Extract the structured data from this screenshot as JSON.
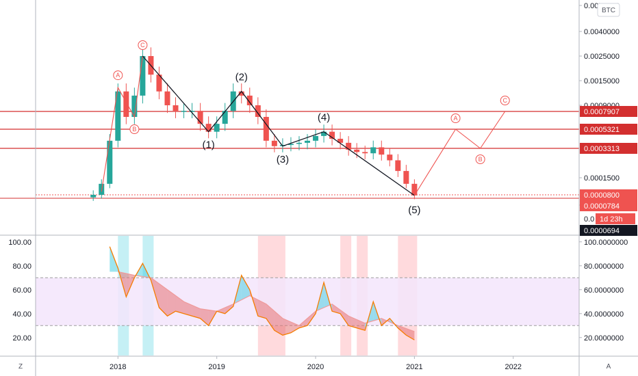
{
  "chart_data": {
    "type": "line",
    "symbol": "BTC",
    "main_pane": {
      "y_ticks": [
        "0.0070000",
        "0.0040000",
        "0.0025000",
        "0.0015000",
        "0.0009000",
        "0.0001500",
        "0.0000500"
      ],
      "y_tick_values": [
        0.007,
        0.004,
        0.0025,
        0.0015,
        0.0009,
        0.00015,
        5e-05
      ],
      "horizontal_levels": [
        {
          "label": "0.0007907",
          "value": 0.0007907
        },
        {
          "label": "0.0005321",
          "value": 0.0005321
        },
        {
          "label": "0.0003313",
          "value": 0.0003313
        }
      ],
      "price_tags": [
        {
          "label": "0.0000800",
          "value": 8e-05
        },
        {
          "label": "0.0000784",
          "value": 7.84e-05
        },
        {
          "label": "0.0000694",
          "value": 6.94e-05
        }
      ],
      "countdown": "1d 23h",
      "partial_tick": "0.0",
      "price_series": {
        "dates": [
          "2017-10",
          "2017-11",
          "2017-12",
          "2018-01",
          "2018-02",
          "2018-03",
          "2018-04",
          "2018-05",
          "2018-06",
          "2018-07",
          "2018-08",
          "2018-09",
          "2018-10",
          "2018-11",
          "2018-12",
          "2019-01",
          "2019-02",
          "2019-03",
          "2019-04",
          "2019-05",
          "2019-06",
          "2019-07",
          "2019-08",
          "2019-09",
          "2019-10",
          "2019-11",
          "2019-12",
          "2020-01",
          "2020-02",
          "2020-03",
          "2020-04",
          "2020-05",
          "2020-06",
          "2020-07",
          "2020-08",
          "2020-09",
          "2020-10",
          "2020-11",
          "2020-12",
          "2021-01"
        ],
        "close": [
          8e-05,
          0.00012,
          0.0004,
          0.0012,
          0.0007,
          0.0011,
          0.0025,
          0.0017,
          0.0012,
          0.0009,
          0.0008,
          0.0008,
          0.0008,
          0.0006,
          0.0005,
          0.0006,
          0.0008,
          0.0012,
          0.0011,
          0.0009,
          0.0007,
          0.0004,
          0.00035,
          0.00036,
          0.00037,
          0.00038,
          0.0004,
          0.00045,
          0.0005,
          0.00042,
          0.00038,
          0.00032,
          0.0003,
          0.00029,
          0.00034,
          0.00028,
          0.00024,
          0.00018,
          0.00012,
          7.8e-05
        ]
      },
      "elliott_wave_labels": [
        "(1)",
        "(2)",
        "(3)",
        "(4)",
        "(5)"
      ],
      "elliott_wave_points": [
        {
          "label": "(1)",
          "date": "2018-12",
          "value": 0.0005
        },
        {
          "label": "(2)",
          "date": "2019-04",
          "value": 0.0012
        },
        {
          "label": "(3)",
          "date": "2019-09",
          "value": 0.00035
        },
        {
          "label": "(4)",
          "date": "2020-02",
          "value": 0.0005
        },
        {
          "label": "(5)",
          "date": "2021-01",
          "value": 7.8e-05
        }
      ],
      "abc_labels": [
        "A",
        "B",
        "C",
        "A",
        "B",
        "C"
      ],
      "abc_past": [
        {
          "label": "A",
          "date": "2018-01",
          "value": 0.0013
        },
        {
          "label": "B",
          "date": "2018-03",
          "value": 0.0007
        },
        {
          "label": "C",
          "date": "2018-04",
          "value": 0.0025
        }
      ],
      "abc_projection": [
        {
          "label": "A",
          "date": "2021-06",
          "value": 0.0005321
        },
        {
          "label": "B",
          "date": "2021-09",
          "value": 0.0003313
        },
        {
          "label": "C",
          "date": "2021-12",
          "value": 0.0007907
        }
      ]
    },
    "oscillator_pane": {
      "y_ticks_left": [
        "100.00",
        "80.00",
        "60.00",
        "40.00",
        "20.00"
      ],
      "y_ticks_right": [
        "100.0000000",
        "80.0000000",
        "60.0000000",
        "40.0000000",
        "20.0000000"
      ],
      "y_tick_values": [
        100,
        80,
        60,
        40,
        20
      ],
      "band": [
        30,
        70
      ],
      "ylim": [
        5,
        105
      ],
      "rsi": {
        "dates": [
          "2017-12",
          "2018-01",
          "2018-02",
          "2018-03",
          "2018-04",
          "2018-05",
          "2018-06",
          "2018-07",
          "2018-08",
          "2018-09",
          "2018-10",
          "2018-11",
          "2018-12",
          "2019-01",
          "2019-02",
          "2019-03",
          "2019-04",
          "2019-05",
          "2019-06",
          "2019-07",
          "2019-08",
          "2019-09",
          "2019-10",
          "2019-11",
          "2019-12",
          "2020-01",
          "2020-02",
          "2020-03",
          "2020-04",
          "2020-05",
          "2020-06",
          "2020-07",
          "2020-08",
          "2020-09",
          "2020-10",
          "2020-11",
          "2020-12",
          "2021-01"
        ],
        "values": [
          96,
          78,
          54,
          70,
          82,
          68,
          45,
          38,
          42,
          40,
          38,
          36,
          30,
          42,
          40,
          46,
          72,
          60,
          38,
          36,
          26,
          22,
          24,
          28,
          30,
          40,
          66,
          42,
          40,
          30,
          28,
          26,
          50,
          30,
          36,
          28,
          22,
          18
        ]
      },
      "signal": {
        "dates": [
          "2018-01",
          "2018-03",
          "2018-05",
          "2018-07",
          "2018-09",
          "2018-11",
          "2019-01",
          "2019-03",
          "2019-05",
          "2019-07",
          "2019-09",
          "2019-11",
          "2020-01",
          "2020-03",
          "2020-05",
          "2020-07",
          "2020-09",
          "2020-11",
          "2021-01"
        ],
        "values": [
          75,
          72,
          70,
          60,
          50,
          44,
          42,
          48,
          55,
          48,
          36,
          30,
          42,
          48,
          38,
          32,
          36,
          30,
          25
        ]
      },
      "highlight_zones": [
        {
          "start": "2018-01",
          "end": "2018-02",
          "color": "#b2ebf2"
        },
        {
          "start": "2018-04",
          "end": "2018-05",
          "color": "#b2ebf2"
        },
        {
          "start": "2019-06",
          "end": "2019-09",
          "color": "#ffcdd2"
        },
        {
          "start": "2020-04",
          "end": "2020-05",
          "color": "#ffcdd2"
        },
        {
          "start": "2020-06",
          "end": "2020-07",
          "color": "#ffcdd2"
        },
        {
          "start": "2020-11",
          "end": "2021-01",
          "color": "#ffcdd2"
        }
      ]
    },
    "x_axis": {
      "ticks": [
        "2018",
        "2019",
        "2020",
        "2021",
        "2022"
      ],
      "tick_dates": [
        "2018-01",
        "2019-01",
        "2020-01",
        "2021-01",
        "2022-01"
      ],
      "xlim": [
        "2017-03",
        "2022-09"
      ]
    },
    "colors": {
      "level_line": "#d32f2f",
      "tag_red": "#ef5350",
      "tag_dark": "#131722",
      "up": "#26a69a",
      "down": "#ef5350",
      "rsi_line": "#f57c00",
      "band_fill": "#f3e5fc",
      "wave_line": "#131722"
    }
  },
  "ui": {
    "currency_button": "BTC",
    "zoom_button": "Z",
    "auto_button": "A"
  }
}
